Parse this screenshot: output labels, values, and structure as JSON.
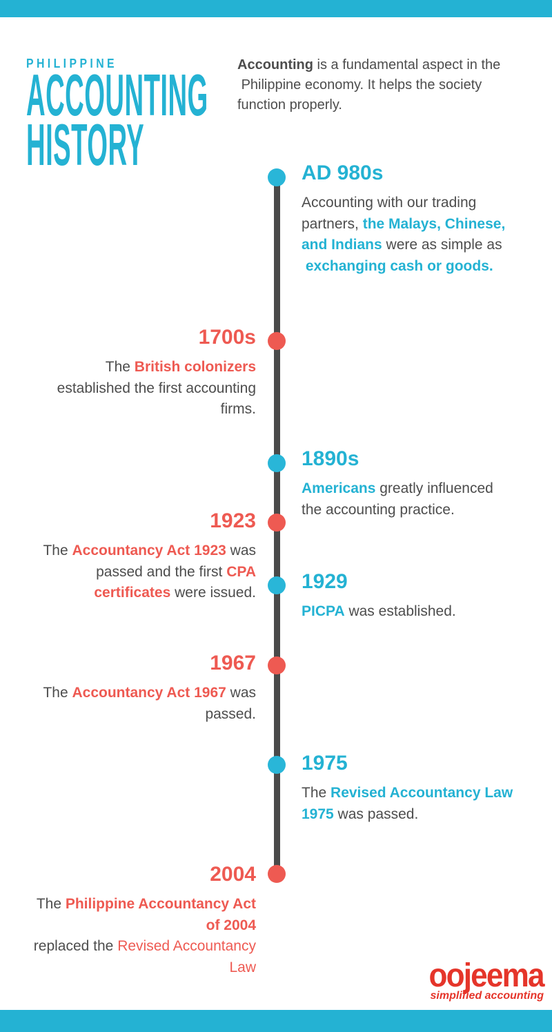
{
  "colors": {
    "teal": "#24b2d3",
    "teal-dot": "#29b6d8",
    "red": "#ee5a52",
    "dark": "#4d4d4d",
    "line": "#4a4a4a",
    "logo-red": "#e5352a",
    "bg": "#ffffff"
  },
  "header": {
    "kicker": "PHILIPPINE",
    "title_line1": "ACCOUNTING",
    "title_line2": "HISTORY",
    "intro_lines": [
      [
        {
          "t": "Accounting",
          "s": "b"
        },
        {
          "t": " is a fundamental aspect in the"
        }
      ],
      [
        {
          "t": " Philippine economy. It helps the society"
        }
      ],
      [
        {
          "t": "function properly."
        }
      ]
    ]
  },
  "timeline": {
    "events": [
      {
        "year": "AD 980s",
        "side": "right",
        "color": "teal",
        "body_lines": [
          [
            {
              "t": "Accounting with our trading"
            }
          ],
          [
            {
              "t": "partners, "
            },
            {
              "t": "the Malays, Chinese,",
              "s": "tb"
            }
          ],
          [
            {
              "t": "and Indians",
              "s": "tb"
            },
            {
              "t": " were as simple as"
            }
          ],
          [
            {
              "t": " "
            },
            {
              "t": "exchanging cash or goods.",
              "s": "tb"
            }
          ]
        ]
      },
      {
        "year": "1700s",
        "side": "left",
        "color": "red",
        "body_lines": [
          [
            {
              "t": "The "
            },
            {
              "t": "British colonizers",
              "s": "rb"
            }
          ],
          [
            {
              "t": "established the first accounting"
            }
          ],
          [
            {
              "t": "firms."
            }
          ]
        ]
      },
      {
        "year": "1890s",
        "side": "right",
        "color": "teal",
        "body_lines": [
          [
            {
              "t": "Americans",
              "s": "tb"
            },
            {
              "t": " greatly influenced"
            }
          ],
          [
            {
              "t": "the accounting practice."
            }
          ]
        ]
      },
      {
        "year": "1923",
        "side": "left",
        "color": "red",
        "body_lines": [
          [
            {
              "t": "The "
            },
            {
              "t": "Accountancy Act 1923",
              "s": "rb"
            },
            {
              "t": " was"
            }
          ],
          [
            {
              "t": "passed and the first "
            },
            {
              "t": "CPA",
              "s": "rb"
            }
          ],
          [
            {
              "t": "certificates",
              "s": "rb"
            },
            {
              "t": " were issued."
            }
          ]
        ]
      },
      {
        "year": "1929",
        "side": "right",
        "color": "teal",
        "body_lines": [
          [
            {
              "t": "PICPA",
              "s": "tb"
            },
            {
              "t": " was established."
            }
          ]
        ]
      },
      {
        "year": "1967",
        "side": "left",
        "color": "red",
        "body_lines": [
          [
            {
              "t": "The "
            },
            {
              "t": "Accountancy Act 1967",
              "s": "rb"
            },
            {
              "t": " was"
            }
          ],
          [
            {
              "t": "passed."
            }
          ]
        ]
      },
      {
        "year": "1975",
        "side": "right",
        "color": "teal",
        "body_lines": [
          [
            {
              "t": "The "
            },
            {
              "t": "Revised Accountancy Law",
              "s": "tb"
            }
          ],
          [
            {
              "t": "1975",
              "s": "tb"
            },
            {
              "t": " was passed."
            }
          ]
        ]
      },
      {
        "year": "2004",
        "side": "left",
        "color": "red",
        "body_lines": [
          [
            {
              "t": "The "
            },
            {
              "t": "Philippine Accountancy Act",
              "s": "rb"
            }
          ],
          [
            {
              "t": "of 2004",
              "s": "rb"
            }
          ],
          [
            {
              "t": "replaced the "
            },
            {
              "t": "Revised Accountancy",
              "s": "r"
            }
          ],
          [
            {
              "t": "Law",
              "s": "r"
            }
          ]
        ]
      }
    ]
  },
  "logo": {
    "name": "oojeema",
    "tagline": "simplified accounting"
  }
}
